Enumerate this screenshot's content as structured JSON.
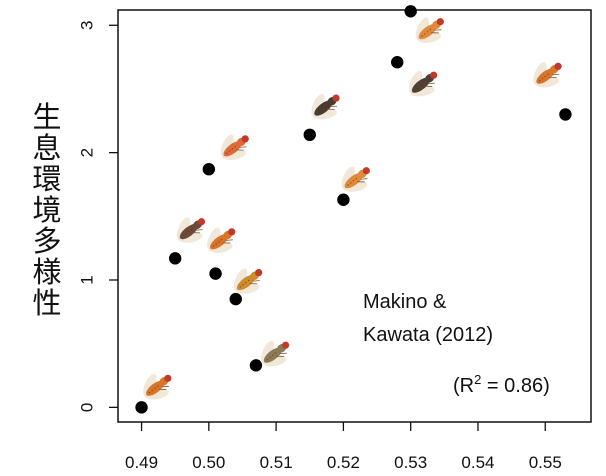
{
  "chart_data": {
    "type": "scatter",
    "ylabel": "生息環境多様性",
    "xlabel": "",
    "title": "",
    "xlim": [
      0.4865,
      0.5568
    ],
    "ylim": [
      -0.115,
      3.12
    ],
    "x_ticks": [
      "0.49",
      "0.50",
      "0.51",
      "0.52",
      "0.53",
      "0.54",
      "0.55"
    ],
    "y_ticks": [
      "0",
      "1",
      "2",
      "3"
    ],
    "annotation": {
      "line1": "Makino &",
      "line2": "Kawata (2012)",
      "r2_prefix": "(R",
      "r2_sup": "2",
      "r2_suffix": " = 0.86)"
    },
    "points": [
      {
        "x": 0.49,
        "y": 0.0
      },
      {
        "x": 0.495,
        "y": 1.17
      },
      {
        "x": 0.5,
        "y": 1.87
      },
      {
        "x": 0.501,
        "y": 1.05
      },
      {
        "x": 0.504,
        "y": 0.85
      },
      {
        "x": 0.507,
        "y": 0.33
      },
      {
        "x": 0.515,
        "y": 2.14
      },
      {
        "x": 0.52,
        "y": 1.63
      },
      {
        "x": 0.528,
        "y": 2.71
      },
      {
        "x": 0.53,
        "y": 3.11
      },
      {
        "x": 0.553,
        "y": 2.3
      }
    ],
    "fly_icons": [
      {
        "x": 0.4925,
        "y": 0.17,
        "color": "#d9752b"
      },
      {
        "x": 0.4975,
        "y": 1.4,
        "color": "#6b4a3a"
      },
      {
        "x": 0.502,
        "y": 1.32,
        "color": "#d9752b"
      },
      {
        "x": 0.504,
        "y": 2.05,
        "color": "#e0693a"
      },
      {
        "x": 0.506,
        "y": 1.0,
        "color": "#d08a2c"
      },
      {
        "x": 0.51,
        "y": 0.43,
        "color": "#8a7a55"
      },
      {
        "x": 0.5175,
        "y": 2.37,
        "color": "#4a3a30"
      },
      {
        "x": 0.522,
        "y": 1.8,
        "color": "#e08a3a"
      },
      {
        "x": 0.532,
        "y": 2.55,
        "color": "#4f3e33"
      },
      {
        "x": 0.533,
        "y": 2.97,
        "color": "#e28a3a"
      },
      {
        "x": 0.5505,
        "y": 2.62,
        "color": "#d9752b"
      }
    ]
  }
}
